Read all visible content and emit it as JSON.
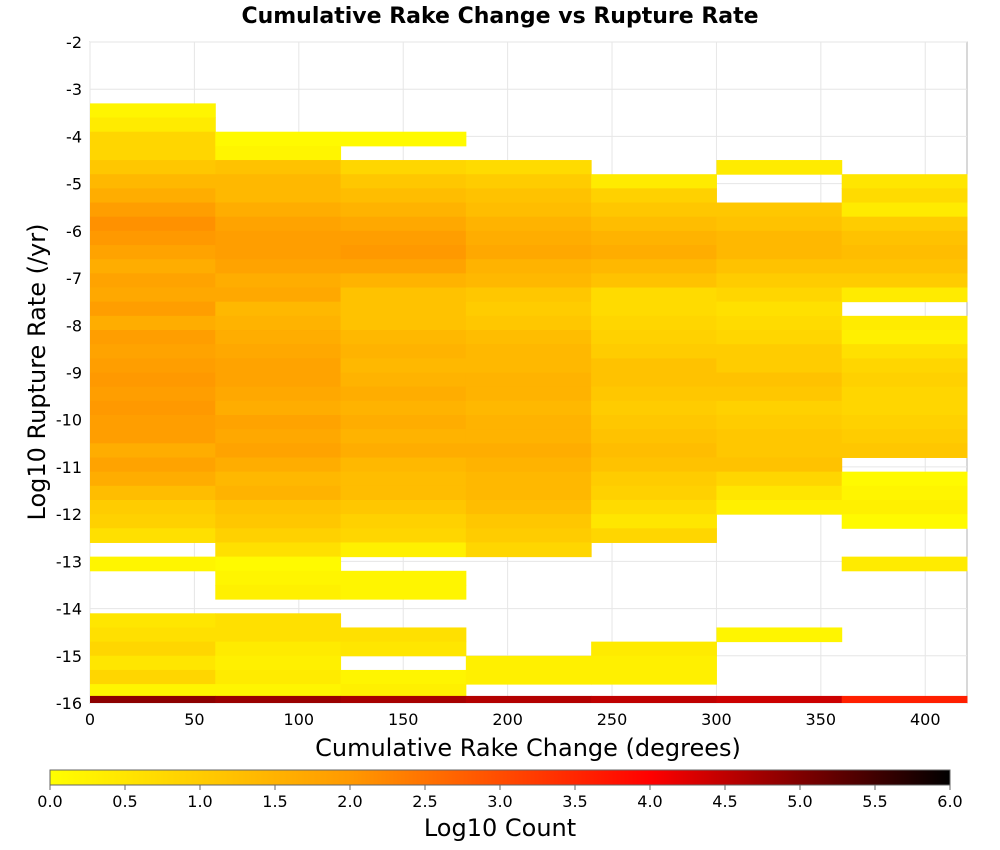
{
  "chart_data": {
    "type": "heatmap",
    "title": "Cumulative Rake Change vs Rupture Rate",
    "xlabel": "Cumulative Rake Change (degrees)",
    "ylabel": "Log10 Rupture Rate (/yr)",
    "xlim": [
      0,
      420
    ],
    "ylim": [
      -16,
      -2
    ],
    "xticks": [
      0,
      50,
      100,
      150,
      200,
      250,
      300,
      350,
      400
    ],
    "yticks": [
      -2,
      -3,
      -4,
      -5,
      -6,
      -7,
      -8,
      -9,
      -10,
      -11,
      -12,
      -13,
      -14,
      -15,
      -16
    ],
    "bin_width_x": 60,
    "bin_height_y": 0.3,
    "colorbar": {
      "label": "Log10 Count",
      "range": [
        0,
        6
      ],
      "ticks": [
        0.0,
        0.5,
        1.0,
        1.5,
        2.0,
        2.5,
        3.0,
        3.5,
        4.0,
        4.5,
        5.0,
        5.5,
        6.0
      ],
      "colors": [
        "#ffff00",
        "#ff9900",
        "#ff0000",
        "#000000"
      ]
    },
    "grid": true,
    "columns": [
      {
        "x0": 0,
        "x1": 60,
        "cells": [
          [
            -3.3,
            0.2
          ],
          [
            -3.6,
            0.4
          ],
          [
            -3.9,
            0.8
          ],
          [
            -4.2,
            0.8
          ],
          [
            -4.5,
            1.1
          ],
          [
            -4.8,
            1.4
          ],
          [
            -5.1,
            1.6
          ],
          [
            -5.4,
            1.9
          ],
          [
            -5.7,
            2.1
          ],
          [
            -6.0,
            2.0
          ],
          [
            -6.3,
            1.8
          ],
          [
            -6.6,
            1.6
          ],
          [
            -6.9,
            1.8
          ],
          [
            -7.2,
            1.7
          ],
          [
            -7.5,
            1.9
          ],
          [
            -7.8,
            1.6
          ],
          [
            -8.1,
            1.9
          ],
          [
            -8.4,
            1.8
          ],
          [
            -8.7,
            1.9
          ],
          [
            -9.0,
            2.0
          ],
          [
            -9.3,
            1.9
          ],
          [
            -9.6,
            2.0
          ],
          [
            -9.9,
            1.9
          ],
          [
            -10.2,
            1.9
          ],
          [
            -10.5,
            1.6
          ],
          [
            -10.8,
            1.8
          ],
          [
            -11.1,
            1.6
          ],
          [
            -11.4,
            1.3
          ],
          [
            -11.7,
            1.0
          ],
          [
            -12.0,
            0.9
          ],
          [
            -12.3,
            0.6
          ],
          [
            -12.9,
            0.2
          ],
          [
            -14.1,
            0.5
          ],
          [
            -14.4,
            0.6
          ],
          [
            -14.7,
            0.8
          ],
          [
            -15.0,
            0.5
          ],
          [
            -15.3,
            0.8
          ],
          [
            -15.6,
            0.2
          ]
        ]
      },
      {
        "x0": 60,
        "x1": 120,
        "cells": [
          [
            -3.9,
            0.1
          ],
          [
            -4.2,
            0.2
          ],
          [
            -4.5,
            1.2
          ],
          [
            -4.8,
            1.4
          ],
          [
            -5.1,
            1.4
          ],
          [
            -5.4,
            1.6
          ],
          [
            -5.7,
            1.8
          ],
          [
            -6.0,
            1.9
          ],
          [
            -6.3,
            1.9
          ],
          [
            -6.6,
            1.8
          ],
          [
            -6.9,
            1.6
          ],
          [
            -7.2,
            1.7
          ],
          [
            -7.5,
            1.4
          ],
          [
            -7.8,
            1.5
          ],
          [
            -8.1,
            1.6
          ],
          [
            -8.4,
            1.7
          ],
          [
            -8.7,
            1.8
          ],
          [
            -9.0,
            1.8
          ],
          [
            -9.3,
            1.7
          ],
          [
            -9.6,
            1.6
          ],
          [
            -9.9,
            1.8
          ],
          [
            -10.2,
            1.7
          ],
          [
            -10.5,
            1.8
          ],
          [
            -10.8,
            1.6
          ],
          [
            -11.1,
            1.4
          ],
          [
            -11.4,
            1.5
          ],
          [
            -11.7,
            1.2
          ],
          [
            -12.0,
            1.1
          ],
          [
            -12.3,
            0.9
          ],
          [
            -12.6,
            0.6
          ],
          [
            -12.9,
            0.1
          ],
          [
            -13.2,
            0.2
          ],
          [
            -13.5,
            0.3
          ],
          [
            -14.1,
            0.6
          ],
          [
            -14.4,
            0.6
          ],
          [
            -14.7,
            0.4
          ],
          [
            -15.0,
            0.3
          ],
          [
            -15.3,
            0.4
          ],
          [
            -15.6,
            0.2
          ]
        ]
      },
      {
        "x0": 120,
        "x1": 180,
        "cells": [
          [
            -3.9,
            0.1
          ],
          [
            -4.5,
            0.8
          ],
          [
            -4.8,
            1.1
          ],
          [
            -5.1,
            1.3
          ],
          [
            -5.4,
            1.5
          ],
          [
            -5.7,
            1.7
          ],
          [
            -6.0,
            1.9
          ],
          [
            -6.3,
            2.0
          ],
          [
            -6.6,
            1.8
          ],
          [
            -6.9,
            1.5
          ],
          [
            -7.2,
            1.2
          ],
          [
            -7.5,
            1.2
          ],
          [
            -7.8,
            1.2
          ],
          [
            -8.1,
            1.4
          ],
          [
            -8.4,
            1.5
          ],
          [
            -8.7,
            1.4
          ],
          [
            -9.0,
            1.5
          ],
          [
            -9.3,
            1.6
          ],
          [
            -9.6,
            1.5
          ],
          [
            -9.9,
            1.6
          ],
          [
            -10.2,
            1.5
          ],
          [
            -10.5,
            1.6
          ],
          [
            -10.8,
            1.4
          ],
          [
            -11.1,
            1.3
          ],
          [
            -11.4,
            1.3
          ],
          [
            -11.7,
            1.1
          ],
          [
            -12.0,
            0.9
          ],
          [
            -12.3,
            0.8
          ],
          [
            -12.6,
            0.3
          ],
          [
            -13.2,
            0.2
          ],
          [
            -13.5,
            0.2
          ],
          [
            -14.4,
            0.6
          ],
          [
            -14.7,
            0.5
          ],
          [
            -15.3,
            0.2
          ],
          [
            -15.6,
            0.3
          ]
        ]
      },
      {
        "x0": 180,
        "x1": 240,
        "cells": [
          [
            -4.5,
            0.7
          ],
          [
            -4.8,
            1.0
          ],
          [
            -5.1,
            1.2
          ],
          [
            -5.4,
            1.3
          ],
          [
            -5.7,
            1.5
          ],
          [
            -6.0,
            1.6
          ],
          [
            -6.3,
            1.7
          ],
          [
            -6.6,
            1.5
          ],
          [
            -6.9,
            1.4
          ],
          [
            -7.2,
            1.1
          ],
          [
            -7.5,
            1.0
          ],
          [
            -7.8,
            1.1
          ],
          [
            -8.1,
            1.3
          ],
          [
            -8.4,
            1.4
          ],
          [
            -8.7,
            1.4
          ],
          [
            -9.0,
            1.5
          ],
          [
            -9.3,
            1.5
          ],
          [
            -9.6,
            1.4
          ],
          [
            -9.9,
            1.5
          ],
          [
            -10.2,
            1.5
          ],
          [
            -10.5,
            1.6
          ],
          [
            -10.8,
            1.5
          ],
          [
            -11.1,
            1.4
          ],
          [
            -11.4,
            1.4
          ],
          [
            -11.7,
            1.3
          ],
          [
            -12.0,
            1.1
          ],
          [
            -12.3,
            1.0
          ],
          [
            -12.6,
            0.8
          ],
          [
            -15.0,
            0.3
          ],
          [
            -15.3,
            0.3
          ]
        ]
      },
      {
        "x0": 240,
        "x1": 300,
        "cells": [
          [
            -4.8,
            0.4
          ],
          [
            -5.1,
            0.9
          ],
          [
            -5.4,
            1.1
          ],
          [
            -5.7,
            1.3
          ],
          [
            -6.0,
            1.5
          ],
          [
            -6.3,
            1.6
          ],
          [
            -6.6,
            1.4
          ],
          [
            -6.9,
            1.2
          ],
          [
            -7.2,
            0.7
          ],
          [
            -7.5,
            0.7
          ],
          [
            -7.8,
            0.8
          ],
          [
            -8.1,
            0.9
          ],
          [
            -8.4,
            1.0
          ],
          [
            -8.7,
            1.2
          ],
          [
            -9.0,
            1.2
          ],
          [
            -9.3,
            1.1
          ],
          [
            -9.6,
            1.0
          ],
          [
            -9.9,
            1.1
          ],
          [
            -10.2,
            1.2
          ],
          [
            -10.5,
            1.3
          ],
          [
            -10.8,
            1.2
          ],
          [
            -11.1,
            1.0
          ],
          [
            -11.4,
            0.9
          ],
          [
            -11.7,
            0.7
          ],
          [
            -12.0,
            0.5
          ],
          [
            -12.3,
            0.8
          ],
          [
            -14.7,
            0.4
          ],
          [
            -15.0,
            0.3
          ],
          [
            -15.3,
            0.3
          ]
        ]
      },
      {
        "x0": 300,
        "x1": 360,
        "cells": [
          [
            -4.5,
            0.4
          ],
          [
            -5.4,
            1.1
          ],
          [
            -5.7,
            1.2
          ],
          [
            -6.0,
            1.4
          ],
          [
            -6.3,
            1.4
          ],
          [
            -6.6,
            1.2
          ],
          [
            -6.9,
            1.0
          ],
          [
            -7.2,
            0.8
          ],
          [
            -7.5,
            0.6
          ],
          [
            -7.8,
            0.7
          ],
          [
            -8.1,
            0.8
          ],
          [
            -8.4,
            1.0
          ],
          [
            -8.7,
            1.0
          ],
          [
            -9.0,
            1.2
          ],
          [
            -9.3,
            1.1
          ],
          [
            -9.6,
            0.9
          ],
          [
            -9.9,
            1.0
          ],
          [
            -10.2,
            1.1
          ],
          [
            -10.5,
            1.1
          ],
          [
            -10.8,
            1.2
          ],
          [
            -11.1,
            0.8
          ],
          [
            -11.4,
            0.5
          ],
          [
            -11.7,
            0.3
          ],
          [
            -14.4,
            0.2
          ]
        ]
      },
      {
        "x0": 360,
        "x1": 420,
        "cells": [
          [
            -4.8,
            0.5
          ],
          [
            -5.1,
            0.7
          ],
          [
            -5.4,
            0.4
          ],
          [
            -5.7,
            1.0
          ],
          [
            -6.0,
            1.2
          ],
          [
            -6.3,
            1.3
          ],
          [
            -6.6,
            1.2
          ],
          [
            -6.9,
            1.0
          ],
          [
            -7.2,
            0.4
          ],
          [
            -7.8,
            0.4
          ],
          [
            -8.1,
            0.3
          ],
          [
            -8.4,
            0.6
          ],
          [
            -8.7,
            0.8
          ],
          [
            -9.0,
            0.9
          ],
          [
            -9.3,
            0.8
          ],
          [
            -9.6,
            0.8
          ],
          [
            -9.9,
            0.9
          ],
          [
            -10.2,
            1.0
          ],
          [
            -10.5,
            1.1
          ],
          [
            -11.1,
            0.1
          ],
          [
            -11.4,
            0.2
          ],
          [
            -11.7,
            0.3
          ],
          [
            -12.0,
            0.1
          ],
          [
            -12.9,
            0.4
          ]
        ]
      }
    ],
    "bottom_row": {
      "y0": -16,
      "y1": -15.85,
      "segments": [
        [
          0,
          60,
          4.9
        ],
        [
          60,
          120,
          4.8
        ],
        [
          120,
          180,
          4.7
        ],
        [
          180,
          240,
          4.6
        ],
        [
          240,
          300,
          4.5
        ],
        [
          300,
          360,
          4.4
        ],
        [
          360,
          420,
          3.6
        ]
      ]
    }
  }
}
